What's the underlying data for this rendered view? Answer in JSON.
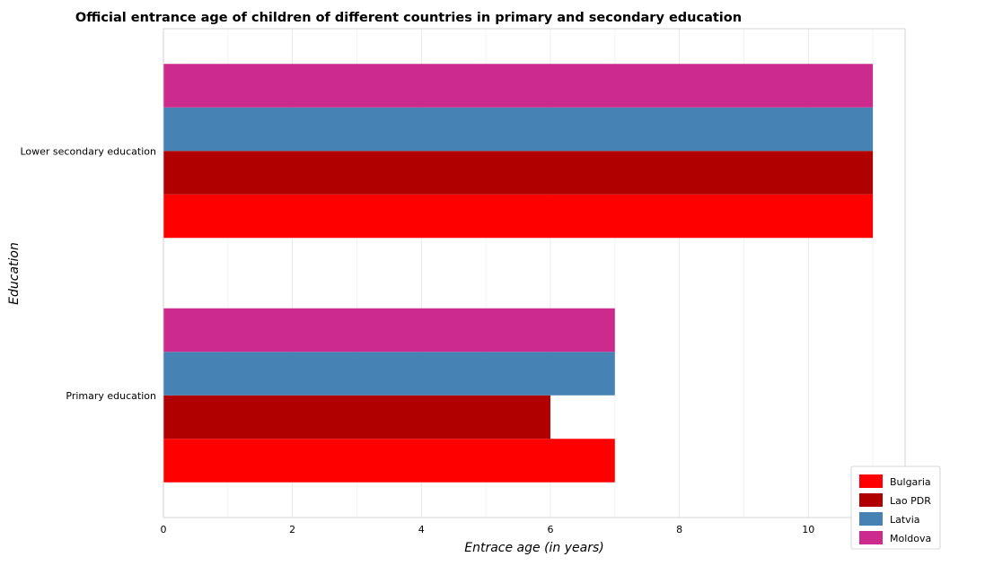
{
  "chart_data": {
    "type": "bar",
    "orientation": "horizontal",
    "title": "Official entrance age of children of different countries in primary and secondary education",
    "xlabel": "Entrace age (in  years)",
    "ylabel": "Education",
    "categories": [
      "Lower secondary education",
      "Primary education"
    ],
    "series": [
      {
        "name": "Bulgaria",
        "color": "#ff0000",
        "values": [
          11,
          7
        ]
      },
      {
        "name": "Lao PDR",
        "color": "#b00000",
        "values": [
          11,
          6
        ]
      },
      {
        "name": "Latvia",
        "color": "#4682b4",
        "values": [
          11,
          7
        ]
      },
      {
        "name": "Moldova",
        "color": "#cc2a8c",
        "values": [
          11,
          7
        ]
      }
    ],
    "xticks": [
      "0",
      "2",
      "4",
      "6",
      "8",
      "10"
    ],
    "xlim": [
      0,
      11.5
    ],
    "grid": true,
    "legend_position": "bottom-right"
  }
}
